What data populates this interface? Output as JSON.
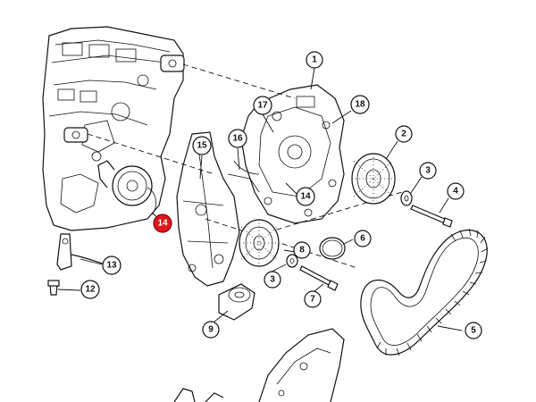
{
  "diagram": {
    "callouts": [
      {
        "id": "1",
        "label": "1"
      },
      {
        "id": "2",
        "label": "2"
      },
      {
        "id": "3a",
        "label": "3"
      },
      {
        "id": "4",
        "label": "4"
      },
      {
        "id": "5",
        "label": "5"
      },
      {
        "id": "6",
        "label": "6"
      },
      {
        "id": "7",
        "label": "7"
      },
      {
        "id": "8",
        "label": "8"
      },
      {
        "id": "3b",
        "label": "3"
      },
      {
        "id": "9",
        "label": "9"
      },
      {
        "id": "12",
        "label": "12"
      },
      {
        "id": "13",
        "label": "13"
      },
      {
        "id": "14a",
        "label": "14"
      },
      {
        "id": "14b",
        "label": "14"
      },
      {
        "id": "15",
        "label": "15"
      },
      {
        "id": "16",
        "label": "16"
      },
      {
        "id": "17",
        "label": "17"
      },
      {
        "id": "18",
        "label": "18"
      }
    ],
    "highlight_color": "#e1141b"
  }
}
